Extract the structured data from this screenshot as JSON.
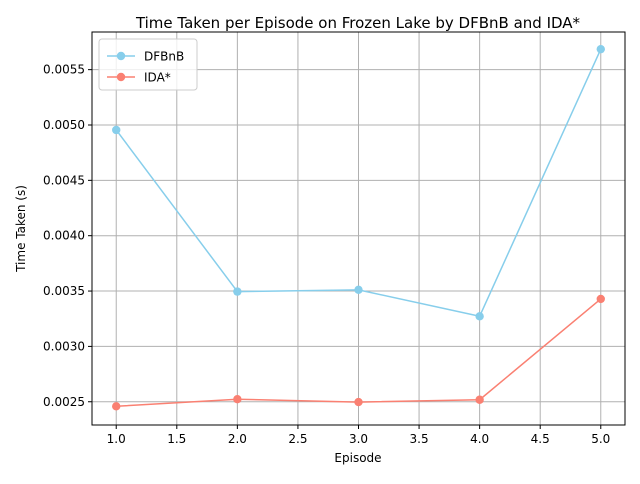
{
  "chart_data": {
    "type": "line",
    "title": "Time Taken per Episode on Frozen Lake by DFBnB and IDA*",
    "xlabel": "Episode",
    "ylabel": "Time Taken (s)",
    "x": [
      1.0,
      2.0,
      3.0,
      4.0,
      5.0
    ],
    "xlim": [
      0.8,
      5.2
    ],
    "ylim": [
      0.00229,
      0.00584
    ],
    "x_ticks": [
      1.0,
      1.5,
      2.0,
      2.5,
      3.0,
      3.5,
      4.0,
      4.5,
      5.0
    ],
    "x_tick_labels": [
      "1.0",
      "1.5",
      "2.0",
      "2.5",
      "3.0",
      "3.5",
      "4.0",
      "4.5",
      "5.0"
    ],
    "y_ticks": [
      0.0025,
      0.003,
      0.0035,
      0.004,
      0.0045,
      0.005,
      0.0055
    ],
    "y_tick_labels": [
      "0.0025",
      "0.0030",
      "0.0035",
      "0.0040",
      "0.0045",
      "0.0050",
      "0.0055"
    ],
    "grid": true,
    "legend_position": "upper-left",
    "series": [
      {
        "name": "DFBnB",
        "color": "#87ceeb",
        "values": [
          0.004955,
          0.003495,
          0.003511,
          0.003272,
          0.005685
        ]
      },
      {
        "name": "IDA*",
        "color": "#fa8072",
        "values": [
          0.002459,
          0.002523,
          0.002497,
          0.002518,
          0.003429
        ]
      }
    ]
  }
}
